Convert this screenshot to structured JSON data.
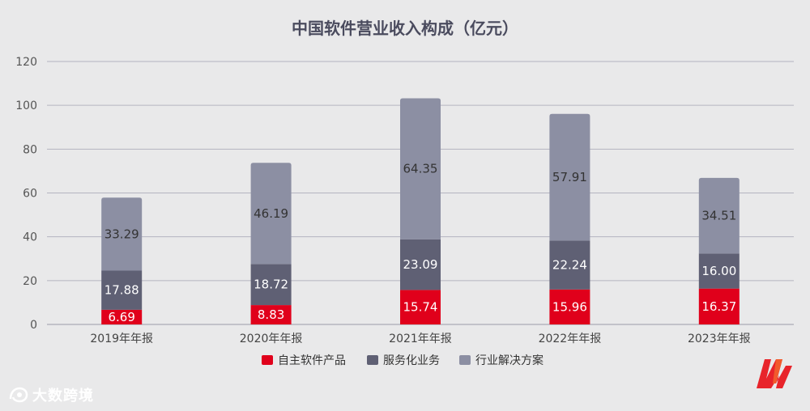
{
  "chart_data": {
    "type": "bar",
    "stacked": true,
    "title": "中国软件营业收入构成（亿元）",
    "categories": [
      "2019年年报",
      "2020年年报",
      "2021年年报",
      "2022年年报",
      "2023年年报"
    ],
    "series": [
      {
        "name": "自主软件产品",
        "color": "#e0001b",
        "label_color": "#ffffff",
        "values": [
          6.69,
          8.83,
          15.74,
          15.96,
          16.37
        ]
      },
      {
        "name": "服务化业务",
        "color": "#5f6074",
        "label_color": "#ffffff",
        "values": [
          17.88,
          18.72,
          23.09,
          22.24,
          16.0
        ]
      },
      {
        "name": "行业解决方案",
        "color": "#8c8fa3",
        "label_color": "#333333",
        "values": [
          33.29,
          46.19,
          64.35,
          57.91,
          34.51
        ]
      }
    ],
    "y_ticks": [
      0,
      20,
      40,
      60,
      80,
      100,
      120
    ],
    "ylim": [
      0,
      120
    ],
    "grid": true,
    "legend_position": "bottom-center"
  },
  "watermark": {
    "text": "大数跨境",
    "icon": "camera-eye-icon"
  },
  "brand_logo": {
    "icon": "m-logo-icon",
    "colors": [
      "#e8242b",
      "#f25a2c"
    ]
  }
}
